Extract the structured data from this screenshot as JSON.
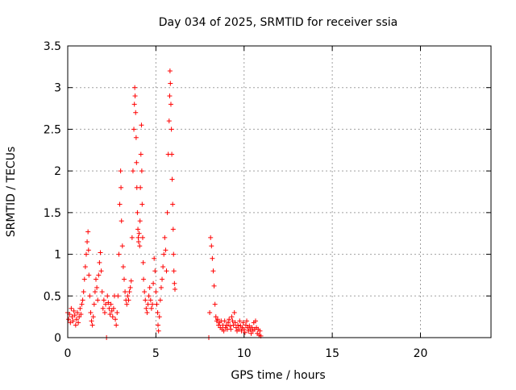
{
  "chart_data": {
    "type": "scatter",
    "title": "Day 034 of 2025, SRMTID for receiver ssia",
    "xlabel": "GPS time / hours",
    "ylabel": "SRMTID / TECUs",
    "xlim": [
      0,
      24
    ],
    "ylim": [
      0,
      3.5
    ],
    "xticks": [
      0,
      5,
      10,
      15,
      20
    ],
    "xtick_labels": [
      "0",
      "5",
      "10",
      "15",
      "20"
    ],
    "yticks": [
      0,
      0.5,
      1,
      1.5,
      2,
      2.5,
      3,
      3.5
    ],
    "ytick_labels": [
      "0",
      "0.5",
      "1",
      "1.5",
      "2",
      "2.5",
      "3",
      "3.5"
    ],
    "grid": true,
    "marker": "+",
    "marker_color": "#ff0000",
    "series": [
      {
        "name": "SRMTID",
        "points": [
          [
            0.0,
            0.3
          ],
          [
            0.05,
            0.22
          ],
          [
            0.1,
            0.28
          ],
          [
            0.15,
            0.18
          ],
          [
            0.2,
            0.35
          ],
          [
            0.25,
            0.25
          ],
          [
            0.3,
            0.2
          ],
          [
            0.35,
            0.32
          ],
          [
            0.4,
            0.27
          ],
          [
            0.45,
            0.15
          ],
          [
            0.5,
            0.22
          ],
          [
            0.55,
            0.3
          ],
          [
            0.6,
            0.18
          ],
          [
            0.65,
            0.25
          ],
          [
            0.7,
            0.35
          ],
          [
            0.75,
            0.28
          ],
          [
            0.8,
            0.4
          ],
          [
            0.85,
            0.45
          ],
          [
            0.9,
            0.55
          ],
          [
            0.95,
            0.7
          ],
          [
            1.0,
            0.85
          ],
          [
            1.05,
            1.0
          ],
          [
            1.1,
            1.15
          ],
          [
            1.15,
            1.27
          ],
          [
            1.18,
            1.05
          ],
          [
            1.2,
            0.75
          ],
          [
            1.25,
            0.5
          ],
          [
            1.3,
            0.3
          ],
          [
            1.35,
            0.2
          ],
          [
            1.4,
            0.15
          ],
          [
            1.45,
            0.25
          ],
          [
            1.5,
            0.4
          ],
          [
            1.55,
            0.55
          ],
          [
            1.6,
            0.7
          ],
          [
            1.65,
            0.6
          ],
          [
            1.7,
            0.45
          ],
          [
            1.75,
            0.75
          ],
          [
            1.8,
            0.9
          ],
          [
            1.85,
            1.02
          ],
          [
            1.9,
            0.8
          ],
          [
            1.95,
            0.55
          ],
          [
            2.0,
            0.35
          ],
          [
            2.05,
            0.45
          ],
          [
            2.1,
            0.3
          ],
          [
            2.15,
            0.4
          ],
          [
            2.2,
            0.0
          ],
          [
            2.25,
            0.5
          ],
          [
            2.3,
            0.42
          ],
          [
            2.35,
            0.35
          ],
          [
            2.4,
            0.28
          ],
          [
            2.45,
            0.4
          ],
          [
            2.5,
            0.32
          ],
          [
            2.55,
            0.25
          ],
          [
            2.6,
            0.35
          ],
          [
            2.65,
            0.5
          ],
          [
            2.7,
            0.22
          ],
          [
            2.75,
            0.15
          ],
          [
            2.8,
            0.3
          ],
          [
            2.85,
            0.5
          ],
          [
            2.9,
            1.0
          ],
          [
            2.95,
            1.6
          ],
          [
            3.0,
            2.0
          ],
          [
            3.02,
            1.8
          ],
          [
            3.05,
            1.4
          ],
          [
            3.1,
            1.1
          ],
          [
            3.15,
            0.85
          ],
          [
            3.2,
            0.7
          ],
          [
            3.25,
            0.55
          ],
          [
            3.3,
            0.45
          ],
          [
            3.35,
            0.4
          ],
          [
            3.4,
            0.5
          ],
          [
            3.45,
            0.45
          ],
          [
            3.5,
            0.55
          ],
          [
            3.55,
            0.6
          ],
          [
            3.6,
            0.68
          ],
          [
            3.65,
            1.2
          ],
          [
            3.7,
            2.0
          ],
          [
            3.75,
            2.5
          ],
          [
            3.78,
            2.8
          ],
          [
            3.8,
            3.0
          ],
          [
            3.82,
            2.9
          ],
          [
            3.85,
            2.7
          ],
          [
            3.88,
            2.4
          ],
          [
            3.9,
            2.1
          ],
          [
            3.92,
            1.8
          ],
          [
            3.95,
            1.5
          ],
          [
            3.98,
            1.3
          ],
          [
            4.0,
            1.2
          ],
          [
            4.02,
            1.15
          ],
          [
            4.05,
            1.25
          ],
          [
            4.08,
            1.1
          ],
          [
            4.1,
            1.4
          ],
          [
            4.12,
            1.8
          ],
          [
            4.15,
            2.2
          ],
          [
            4.18,
            2.55
          ],
          [
            4.2,
            2.0
          ],
          [
            4.22,
            1.6
          ],
          [
            4.25,
            1.2
          ],
          [
            4.28,
            0.9
          ],
          [
            4.3,
            0.7
          ],
          [
            4.35,
            0.55
          ],
          [
            4.4,
            0.45
          ],
          [
            4.45,
            0.35
          ],
          [
            4.5,
            0.3
          ],
          [
            4.55,
            0.4
          ],
          [
            4.6,
            0.5
          ],
          [
            4.65,
            0.6
          ],
          [
            4.7,
            0.45
          ],
          [
            4.75,
            0.35
          ],
          [
            4.8,
            0.4
          ],
          [
            4.85,
            0.65
          ],
          [
            4.9,
            0.95
          ],
          [
            4.95,
            0.8
          ],
          [
            5.0,
            0.55
          ],
          [
            5.05,
            0.4
          ],
          [
            5.1,
            0.3
          ],
          [
            5.12,
            0.15
          ],
          [
            5.15,
            0.08
          ],
          [
            5.2,
            0.25
          ],
          [
            5.25,
            0.45
          ],
          [
            5.3,
            0.6
          ],
          [
            5.35,
            0.7
          ],
          [
            5.4,
            0.85
          ],
          [
            5.45,
            1.0
          ],
          [
            5.5,
            1.2
          ],
          [
            5.55,
            1.05
          ],
          [
            5.6,
            0.8
          ],
          [
            5.65,
            1.5
          ],
          [
            5.7,
            2.2
          ],
          [
            5.75,
            2.6
          ],
          [
            5.78,
            2.9
          ],
          [
            5.8,
            3.2
          ],
          [
            5.82,
            3.05
          ],
          [
            5.85,
            2.8
          ],
          [
            5.88,
            2.5
          ],
          [
            5.9,
            2.2
          ],
          [
            5.92,
            1.9
          ],
          [
            5.95,
            1.6
          ],
          [
            5.98,
            1.3
          ],
          [
            6.0,
            1.0
          ],
          [
            6.02,
            0.8
          ],
          [
            6.05,
            0.65
          ],
          [
            6.08,
            0.58
          ],
          [
            8.0,
            0.0
          ],
          [
            8.05,
            0.3
          ],
          [
            8.1,
            1.2
          ],
          [
            8.15,
            1.1
          ],
          [
            8.2,
            0.95
          ],
          [
            8.25,
            0.8
          ],
          [
            8.3,
            0.62
          ],
          [
            8.35,
            0.4
          ],
          [
            8.4,
            0.25
          ],
          [
            8.45,
            0.2
          ],
          [
            8.5,
            0.22
          ],
          [
            8.55,
            0.15
          ],
          [
            8.6,
            0.18
          ],
          [
            8.65,
            0.12
          ],
          [
            8.7,
            0.2
          ],
          [
            8.75,
            0.1
          ],
          [
            8.8,
            0.15
          ],
          [
            8.85,
            0.08
          ],
          [
            8.9,
            0.2
          ],
          [
            8.95,
            0.12
          ],
          [
            9.0,
            0.15
          ],
          [
            9.05,
            0.1
          ],
          [
            9.1,
            0.18
          ],
          [
            9.15,
            0.22
          ],
          [
            9.2,
            0.14
          ],
          [
            9.25,
            0.1
          ],
          [
            9.3,
            0.25
          ],
          [
            9.35,
            0.2
          ],
          [
            9.4,
            0.15
          ],
          [
            9.45,
            0.3
          ],
          [
            9.5,
            0.18
          ],
          [
            9.55,
            0.12
          ],
          [
            9.6,
            0.08
          ],
          [
            9.65,
            0.15
          ],
          [
            9.7,
            0.1
          ],
          [
            9.75,
            0.2
          ],
          [
            9.8,
            0.14
          ],
          [
            9.85,
            0.08
          ],
          [
            9.9,
            0.12
          ],
          [
            9.95,
            0.18
          ],
          [
            10.0,
            0.1
          ],
          [
            10.05,
            0.06
          ],
          [
            10.1,
            0.15
          ],
          [
            10.15,
            0.2
          ],
          [
            10.2,
            0.12
          ],
          [
            10.25,
            0.08
          ],
          [
            10.3,
            0.14
          ],
          [
            10.35,
            0.1
          ],
          [
            10.4,
            0.05
          ],
          [
            10.45,
            0.12
          ],
          [
            10.5,
            0.08
          ],
          [
            10.55,
            0.18
          ],
          [
            10.6,
            0.1
          ],
          [
            10.65,
            0.2
          ],
          [
            10.7,
            0.12
          ],
          [
            10.75,
            0.05
          ],
          [
            10.8,
            0.1
          ],
          [
            10.85,
            0.03
          ],
          [
            10.9,
            0.08
          ],
          [
            10.95,
            0.02
          ]
        ]
      }
    ]
  }
}
